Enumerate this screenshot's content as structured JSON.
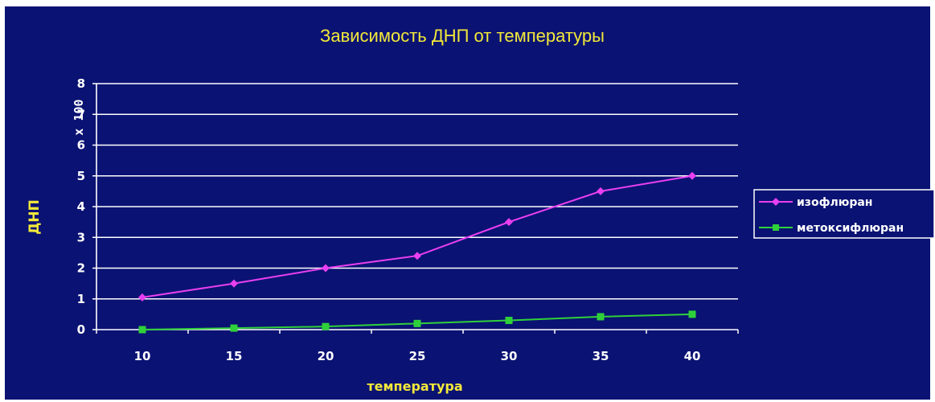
{
  "chart_data": {
    "type": "line",
    "title": "Зависимость ДНП от температуры",
    "xlabel": "температура",
    "ylabel": "ДНП",
    "yunit": "x 100",
    "categories": [
      "10",
      "15",
      "20",
      "25",
      "30",
      "35",
      "40"
    ],
    "series": [
      {
        "name": "изофлюран",
        "values": [
          1.05,
          1.5,
          2.0,
          2.4,
          3.5,
          4.5,
          5.0
        ],
        "color": "#e93ff0",
        "marker": "diamond"
      },
      {
        "name": "метоксифлюран",
        "values": [
          0.0,
          0.05,
          0.1,
          0.2,
          0.3,
          0.42,
          0.5
        ],
        "color": "#2fd13a",
        "marker": "square"
      }
    ],
    "ylim": [
      0,
      8
    ],
    "yticks": [
      "0",
      "1",
      "2",
      "3",
      "4",
      "5",
      "6",
      "7",
      "8"
    ],
    "grid": true,
    "legend_position": "right",
    "background_color": "#0a1273",
    "text_color": "#f2e83a"
  }
}
